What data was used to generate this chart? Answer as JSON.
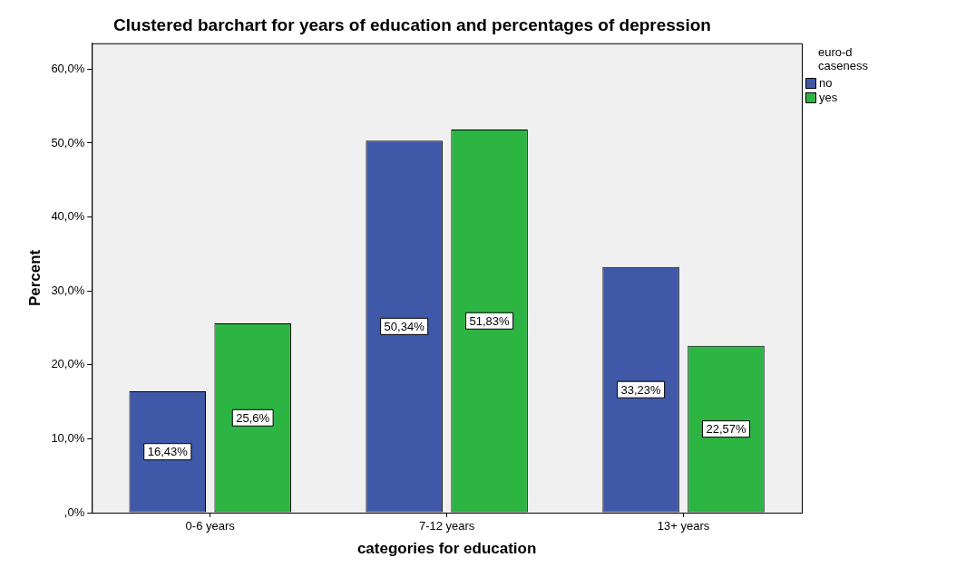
{
  "chart_data": {
    "type": "bar",
    "title": "Clustered barchart for years of education and percentages of depression",
    "xlabel": "categories for education",
    "ylabel": "Percent",
    "legend_title": "euro-d caseness",
    "legend": "top right",
    "categories": [
      "0-6 years",
      "7-12 years",
      "13+ years"
    ],
    "series": [
      {
        "name": "no",
        "color": "#3f58a8",
        "values": [
          16.43,
          50.34,
          33.23
        ],
        "value_labels": [
          "16,43%",
          "50,34%",
          "33,23%"
        ]
      },
      {
        "name": "yes",
        "color": "#2db543",
        "values": [
          25.6,
          51.83,
          22.57
        ],
        "value_labels": [
          "25,6%",
          "51,83%",
          "22,57%"
        ]
      }
    ],
    "ylim": [
      0,
      63.5
    ],
    "yticks": [
      {
        "value": 0,
        "label": ",0%"
      },
      {
        "value": 10,
        "label": "10,0%"
      },
      {
        "value": 20,
        "label": "20,0%"
      },
      {
        "value": 30,
        "label": "30,0%"
      },
      {
        "value": 40,
        "label": "40,0%"
      },
      {
        "value": 50,
        "label": "50,0%"
      },
      {
        "value": 60,
        "label": "60,0%"
      }
    ]
  }
}
